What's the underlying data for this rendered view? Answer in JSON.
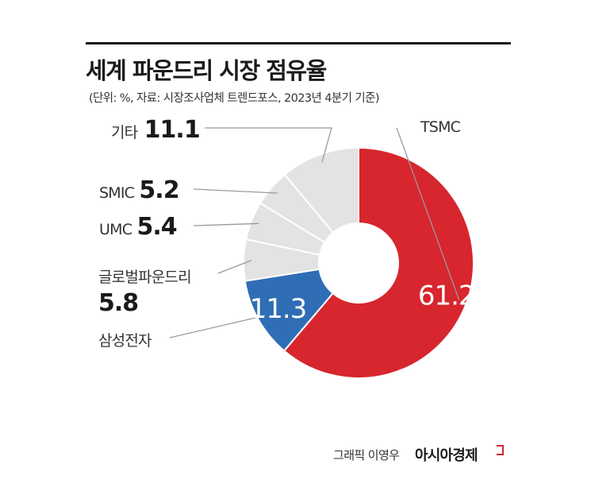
{
  "header": {
    "title": "세계 파운드리 시장 점유율",
    "subtitle": "(단위: %, 자료: 시장조사업체 트렌드포스, 2023년 4분기 기준)"
  },
  "chart_data": {
    "type": "pie",
    "variant": "donut",
    "title": "세계 파운드리 시장 점유율",
    "unit": "%",
    "slices": [
      {
        "label": "TSMC",
        "value": 61.2,
        "value_text": "61.2",
        "color": "#d7262e"
      },
      {
        "label": "삼성전자",
        "value": 11.3,
        "value_text": "11.3",
        "color": "#2f6db5"
      },
      {
        "label": "글로벌파운드리",
        "value": 5.8,
        "value_text": "5.8",
        "color": "#e3e3e3"
      },
      {
        "label": "UMC",
        "value": 5.4,
        "value_text": "5.4",
        "color": "#e3e3e3"
      },
      {
        "label": "SMIC",
        "value": 5.2,
        "value_text": "5.2",
        "color": "#e3e3e3"
      },
      {
        "label": "기타",
        "value": 11.1,
        "value_text": "11.1",
        "color": "#e3e3e3"
      }
    ]
  },
  "footer": {
    "credit": "그래픽 이영우",
    "brand": "아시아경제"
  }
}
